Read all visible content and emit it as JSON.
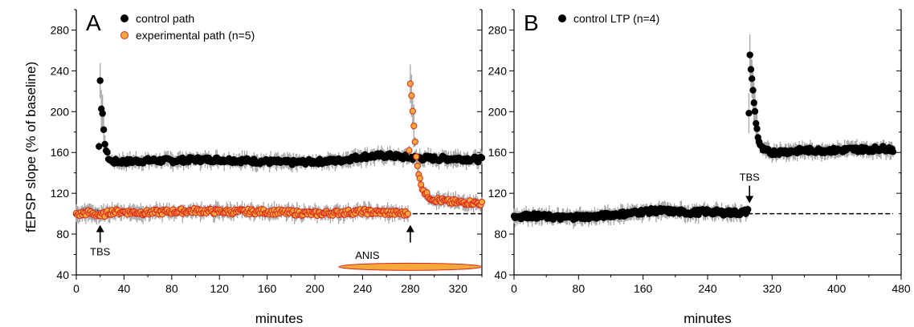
{
  "chart_data": [
    {
      "id": "A",
      "type": "scatter",
      "panel_label": "A",
      "xlabel": "minutes",
      "ylabel": "fEPSP slope (% of baseline)",
      "xlim": [
        0,
        340
      ],
      "ylim": [
        40,
        300
      ],
      "xticks": [
        0,
        40,
        80,
        120,
        160,
        200,
        240,
        280,
        320
      ],
      "yticks": [
        40,
        80,
        120,
        160,
        200,
        240,
        280
      ],
      "baseline": {
        "y": 100,
        "x_from": 282,
        "x_to": 340,
        "style": "dashed"
      },
      "legend": [
        "control path",
        "experimental path (n=5)"
      ],
      "series": [
        {
          "name": "control path",
          "color": "#000000",
          "error_color": "#a6a6a6",
          "points": [
            [
              0,
              100
            ],
            [
              5,
              101
            ],
            [
              10,
              102
            ],
            [
              15,
              101
            ],
            [
              18,
              100
            ],
            [
              20,
              232
            ],
            [
              21,
              205
            ],
            [
              22,
              196
            ],
            [
              23,
              180
            ],
            [
              24,
              170
            ],
            [
              25,
              162
            ],
            [
              26,
              158
            ],
            [
              27,
              155
            ],
            [
              28,
              153
            ],
            [
              29,
              152
            ],
            [
              30,
              151
            ],
            [
              40,
              151
            ],
            [
              60,
              152
            ],
            [
              80,
              152
            ],
            [
              100,
              153
            ],
            [
              120,
              153
            ],
            [
              140,
              152
            ],
            [
              160,
              151
            ],
            [
              180,
              150
            ],
            [
              200,
              151
            ],
            [
              220,
              152
            ],
            [
              240,
              156
            ],
            [
              260,
              157
            ],
            [
              280,
              155
            ],
            [
              300,
              154
            ],
            [
              320,
              154
            ],
            [
              340,
              153
            ]
          ]
        },
        {
          "name": "experimental path (n=5)",
          "color": "#f5a93a",
          "edge_color": "#d9281f",
          "error_color": "#a6a6a6",
          "points": [
            [
              0,
              99
            ],
            [
              10,
              101
            ],
            [
              18,
              99
            ],
            [
              20,
              98
            ],
            [
              30,
              102
            ],
            [
              60,
              101
            ],
            [
              80,
              102
            ],
            [
              100,
              103
            ],
            [
              120,
              102
            ],
            [
              140,
              102
            ],
            [
              160,
              102
            ],
            [
              180,
              101
            ],
            [
              200,
              100
            ],
            [
              220,
              101
            ],
            [
              240,
              102
            ],
            [
              260,
              101
            ],
            [
              278,
              100
            ],
            [
              280,
              229
            ],
            [
              281,
              214
            ],
            [
              282,
              200
            ],
            [
              283,
              185
            ],
            [
              284,
              170
            ],
            [
              285,
              158
            ],
            [
              286,
              148
            ],
            [
              287,
              140
            ],
            [
              288,
              133
            ],
            [
              290,
              126
            ],
            [
              292,
              121
            ],
            [
              295,
              117
            ],
            [
              300,
              114
            ],
            [
              310,
              112
            ],
            [
              320,
              111
            ],
            [
              330,
              111
            ],
            [
              340,
              110
            ]
          ]
        }
      ],
      "annotations": [
        {
          "text": "TBS",
          "x": 20,
          "type": "arrow"
        },
        {
          "text": "ANIS",
          "x_from": 220,
          "x_to": 340,
          "type": "bar",
          "color": "#f5a93a",
          "edge_color": "#d9281f"
        }
      ]
    },
    {
      "id": "B",
      "type": "scatter",
      "panel_label": "B",
      "xlabel": "minutes",
      "ylabel": "",
      "xlim": [
        0,
        480
      ],
      "ylim": [
        40,
        300
      ],
      "xticks": [
        0,
        80,
        160,
        240,
        320,
        400,
        480
      ],
      "yticks": [
        40,
        80,
        120,
        160,
        200,
        240,
        280
      ],
      "baseline": {
        "y": 100,
        "x_from": 290,
        "x_to": 470,
        "style": "dashed"
      },
      "legend": [
        "control LTP (n=4)"
      ],
      "series": [
        {
          "name": "control LTP (n=4)",
          "color": "#000000",
          "error_color": "#a6a6a6",
          "points": [
            [
              0,
              97
            ],
            [
              20,
              98
            ],
            [
              40,
              97
            ],
            [
              60,
              96
            ],
            [
              80,
              97
            ],
            [
              100,
              97
            ],
            [
              120,
              99
            ],
            [
              140,
              100
            ],
            [
              160,
              102
            ],
            [
              180,
              103
            ],
            [
              200,
              102
            ],
            [
              220,
              101
            ],
            [
              240,
              102
            ],
            [
              260,
              101
            ],
            [
              280,
              101
            ],
            [
              290,
              102
            ],
            [
              292,
              260
            ],
            [
              294,
              240
            ],
            [
              296,
              222
            ],
            [
              298,
              205
            ],
            [
              300,
              190
            ],
            [
              302,
              178
            ],
            [
              304,
              170
            ],
            [
              306,
              165
            ],
            [
              310,
              162
            ],
            [
              320,
              160
            ],
            [
              340,
              161
            ],
            [
              360,
              162
            ],
            [
              380,
              162
            ],
            [
              400,
              162
            ],
            [
              420,
              163
            ],
            [
              440,
              163
            ],
            [
              460,
              164
            ],
            [
              470,
              163
            ]
          ]
        }
      ],
      "annotations": [
        {
          "text": "TBS",
          "x": 292,
          "type": "arrow"
        }
      ]
    }
  ]
}
